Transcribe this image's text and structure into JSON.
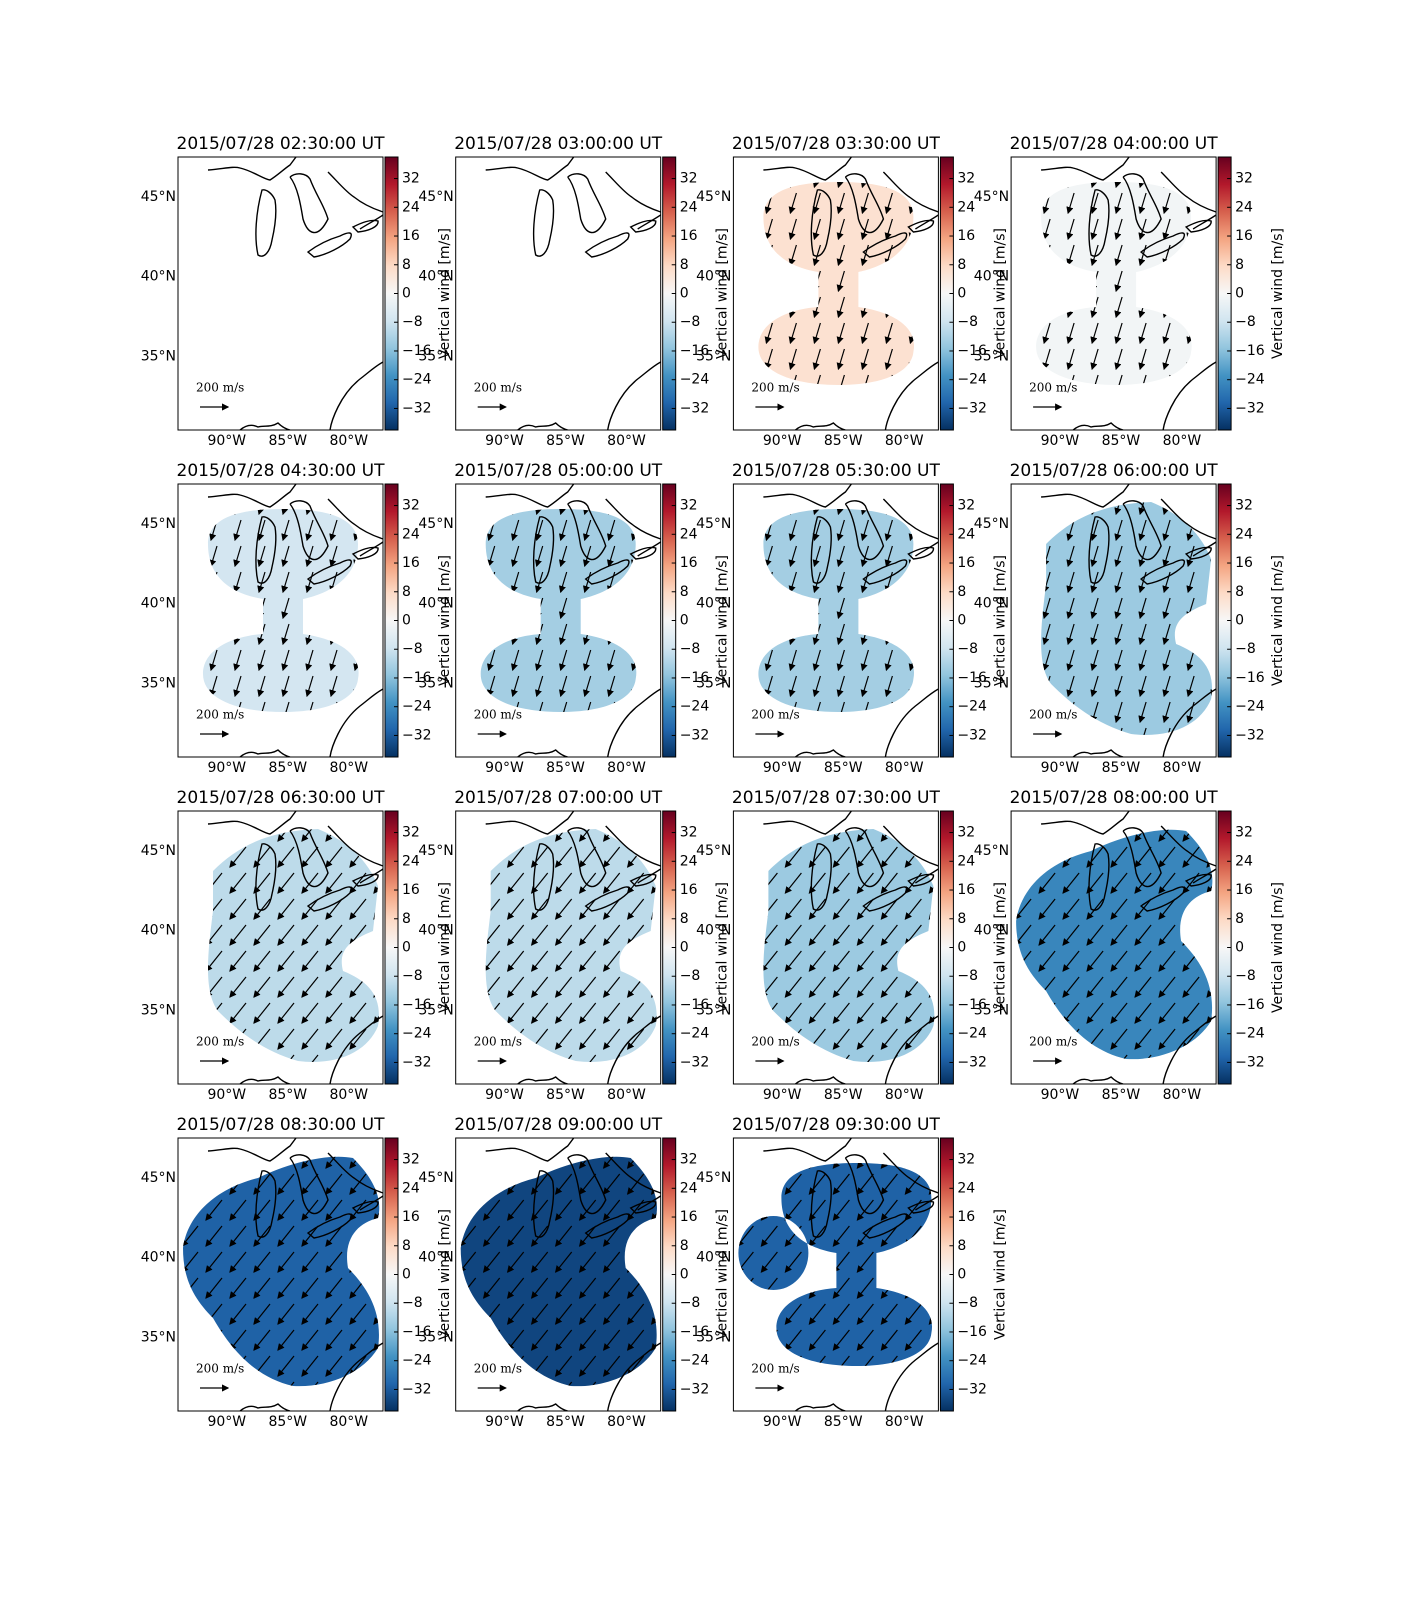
{
  "chart_data": [
    {
      "type": "map",
      "title": "2015/07/28 02:30:00 UT",
      "value": null
    },
    {
      "type": "map",
      "title": "2015/07/28 03:00:00 UT",
      "value": null
    },
    {
      "type": "map",
      "title": "2015/07/28 03:30:00 UT",
      "value": 6
    },
    {
      "type": "map",
      "title": "2015/07/28 04:00:00 UT",
      "value": -1
    },
    {
      "type": "map",
      "title": "2015/07/28 04:30:00 UT",
      "value": -7
    },
    {
      "type": "map",
      "title": "2015/07/28 05:00:00 UT",
      "value": -13
    },
    {
      "type": "map",
      "title": "2015/07/28 05:30:00 UT",
      "value": -13
    },
    {
      "type": "map",
      "title": "2015/07/28 06:00:00 UT",
      "value": -14
    },
    {
      "type": "map",
      "title": "2015/07/28 06:30:00 UT",
      "value": -10
    },
    {
      "type": "map",
      "title": "2015/07/28 07:00:00 UT",
      "value": -10
    },
    {
      "type": "map",
      "title": "2015/07/28 07:30:00 UT",
      "value": -14
    },
    {
      "type": "map",
      "title": "2015/07/28 08:00:00 UT",
      "value": -25
    },
    {
      "type": "map",
      "title": "2015/07/28 08:30:00 UT",
      "value": -31
    },
    {
      "type": "map",
      "title": "2015/07/28 09:00:00 UT",
      "value": -35
    },
    {
      "type": "map",
      "title": "2015/07/28 09:30:00 UT",
      "value": -31
    }
  ],
  "axes": {
    "xlim": [
      -94,
      -77.2
    ],
    "ylim": [
      30.4,
      47.5
    ],
    "xticks": [
      {
        "value": -90,
        "label": "90°W"
      },
      {
        "value": -85,
        "label": "85°W"
      },
      {
        "value": -80,
        "label": "80°W"
      }
    ],
    "yticks": [
      {
        "value": 35,
        "label": "35°N"
      },
      {
        "value": 40,
        "label": "40°N"
      },
      {
        "value": 45,
        "label": "45°N"
      }
    ],
    "colorbar": {
      "label": "Vertical wind [m/s]",
      "lim": [
        -38,
        38
      ],
      "ticks": [
        {
          "value": -32,
          "label": "−32"
        },
        {
          "value": -24,
          "label": "−24"
        },
        {
          "value": -16,
          "label": "−16"
        },
        {
          "value": -8,
          "label": "−8"
        },
        0,
        8,
        16,
        24,
        32
      ]
    },
    "scale_arrow": {
      "value": 200,
      "label": "200 m/s"
    }
  }
}
